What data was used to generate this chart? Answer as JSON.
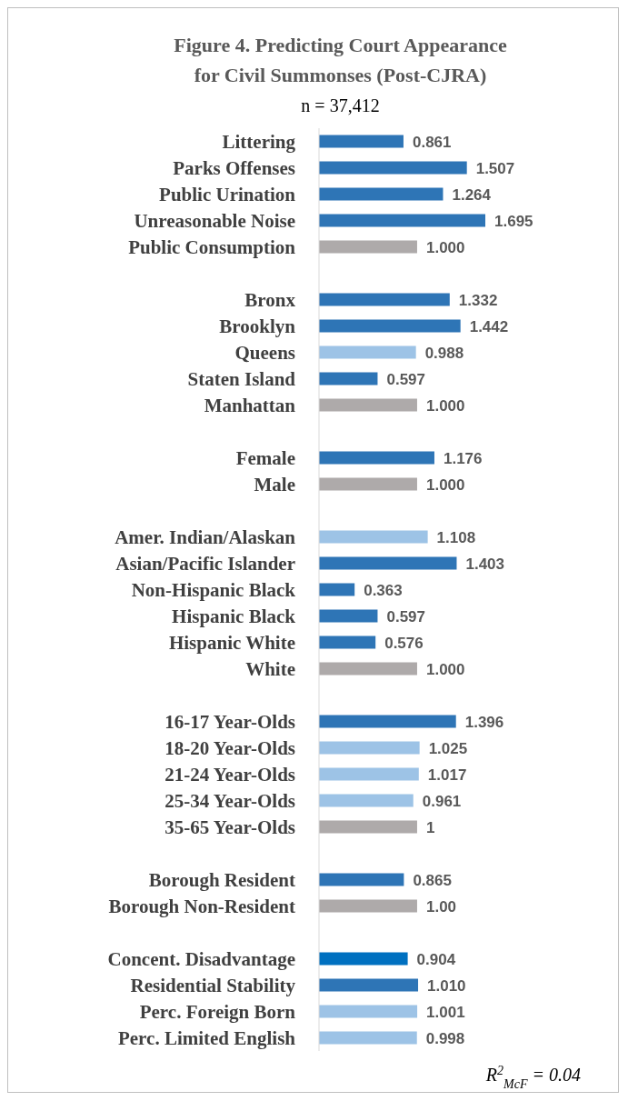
{
  "chart_data": {
    "type": "bar",
    "orientation": "horizontal",
    "title": "Figure 4. Predicting Court Appearance for Civil Summonses (Post-CJRA)",
    "subtitle": "n = 37,412",
    "categories": [
      "Littering",
      "Parks Offenses",
      "Public Urination",
      "Unreasonable Noise",
      "Public Consumption",
      null,
      "Bronx",
      "Brooklyn",
      "Queens",
      "Staten Island",
      "Manhattan",
      null,
      "Female",
      "Male",
      null,
      "Amer. Indian/Alaskan",
      "Asian/Pacific Islander",
      "Non-Hispanic Black",
      "Hispanic Black",
      "Hispanic White",
      "White",
      null,
      "16-17 Year-Olds",
      "18-20 Year-Olds",
      "21-24 Year-Olds",
      "25-34 Year-Olds",
      "35-65 Year-Olds",
      null,
      "Borough Resident",
      "Borough Non-Resident",
      null,
      "Concent. Disadvantage",
      "Residential Stability",
      "Perc. Foreign Born",
      "Perc. Limited English"
    ],
    "values": [
      0.861,
      1.507,
      1.264,
      1.695,
      1.0,
      null,
      1.332,
      1.442,
      0.988,
      0.597,
      1.0,
      null,
      1.176,
      1.0,
      null,
      1.108,
      1.403,
      0.363,
      0.597,
      0.576,
      1.0,
      null,
      1.396,
      1.025,
      1.017,
      0.961,
      1,
      null,
      0.865,
      1.0,
      null,
      0.904,
      1.01,
      1.001,
      0.998
    ],
    "value_labels": [
      "0.861",
      "1.507",
      "1.264",
      "1.695",
      "1.000",
      null,
      "1.332",
      "1.442",
      "0.988",
      "0.597",
      "1.000",
      null,
      "1.176",
      "1.000",
      null,
      "1.108",
      "1.403",
      "0.363",
      "0.597",
      "0.576",
      "1.000",
      null,
      "1.396",
      "1.025",
      "1.017",
      "0.961",
      "1",
      null,
      "0.865",
      "1.00",
      null,
      "0.904",
      "1.010",
      "1.001",
      "0.998"
    ],
    "colors": [
      "#2e75b6",
      "#2e75b6",
      "#2e75b6",
      "#2e75b6",
      "#aeaaaa",
      null,
      "#2e75b6",
      "#2e75b6",
      "#9dc3e6",
      "#2e75b6",
      "#aeaaaa",
      null,
      "#2e75b6",
      "#aeaaaa",
      null,
      "#9dc3e6",
      "#2e75b6",
      "#2e75b6",
      "#2e75b6",
      "#2e75b6",
      "#aeaaaa",
      null,
      "#2e75b6",
      "#9dc3e6",
      "#9dc3e6",
      "#9dc3e6",
      "#aeaaaa",
      null,
      "#2e75b6",
      "#aeaaaa",
      null,
      "#0070c0",
      "#2e75b6",
      "#9dc3e6",
      "#9dc3e6"
    ],
    "tick_labels": "y",
    "annotations": [
      "R$^{2}$$_{McF}$ = 0.04"
    ]
  }
}
